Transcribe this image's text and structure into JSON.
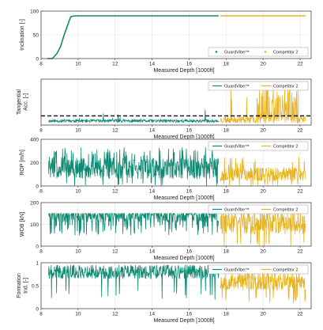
{
  "colors": {
    "guardvibe": "#0e8a72",
    "competitor": "#e8b321",
    "threshold": "#000000",
    "grid": "#e3e3e3",
    "frame": "#333333"
  },
  "chart_data": [
    {
      "type": "line",
      "ylabel": "Inclination [-]",
      "xlabel": "Measured Depth [1000ft]",
      "xlim": [
        8,
        22.6
      ],
      "ylim": [
        0,
        100
      ],
      "xticks": [
        8,
        10,
        12,
        14,
        16,
        18,
        20,
        22
      ],
      "yticks": [
        0,
        50,
        100
      ],
      "legend_position": "bottom-right",
      "series": [
        {
          "name": "GuardVibe™",
          "marker": "dot",
          "x": [
            8.35,
            8.6,
            8.85,
            9.05,
            9.25,
            9.45,
            9.6,
            9.8,
            10.5,
            11.5,
            12.5,
            13.5,
            14.5,
            15.5,
            16.5,
            17.6
          ],
          "values": [
            0,
            0,
            10,
            25,
            50,
            72,
            88,
            90,
            90,
            90,
            90,
            90,
            90,
            90,
            90,
            90
          ]
        },
        {
          "name": "Competitor 2",
          "marker": "dot",
          "x": [
            17.7,
            18.5,
            19.5,
            20.5,
            21.5,
            22.3
          ],
          "values": [
            90,
            90,
            90,
            90,
            90,
            90
          ]
        }
      ]
    },
    {
      "type": "line",
      "ylabel": "Tangential Acc. [-]",
      "xlabel": "Measured Depth [1000ft]",
      "xlim": [
        8,
        22.6
      ],
      "ylim": [
        0,
        10
      ],
      "xticks": [
        8,
        10,
        12,
        14,
        16,
        18,
        20,
        22
      ],
      "yticks": [],
      "legend_position": "top-right",
      "threshold": 2,
      "series": [
        {
          "name": "GuardVibe™",
          "noise": "spiky",
          "x_range": [
            8.4,
            17.6
          ],
          "base": 0.9,
          "amp": 0.7,
          "spike_prob": 0.02,
          "spike_max": 4.5,
          "seed": 11
        },
        {
          "name": "Competitor 2",
          "noise": "spiky",
          "x_range": [
            17.7,
            22.3
          ],
          "base": 1.2,
          "amp": 1.5,
          "spike_prob": 0.2,
          "spike_max": 8.8,
          "seed": 23,
          "burst_range": [
            19.6,
            21.9
          ]
        }
      ]
    },
    {
      "type": "line",
      "ylabel": "ROP [m/h]",
      "xlabel": "Measured Depth [1000ft]",
      "xlim": [
        8,
        22.6
      ],
      "ylim": [
        0,
        400
      ],
      "xticks": [
        8,
        10,
        12,
        14,
        16,
        18,
        20,
        22
      ],
      "yticks": [
        0,
        200,
        400
      ],
      "legend_position": "top-right",
      "series": [
        {
          "name": "GuardVibe™",
          "noise": "band",
          "x_range": [
            8.4,
            17.6
          ],
          "base": 150,
          "amp": 90,
          "spike_prob": 0.12,
          "spike_max": 330,
          "seed": 5
        },
        {
          "name": "Competitor 2",
          "noise": "band",
          "x_range": [
            17.7,
            22.3
          ],
          "base": 100,
          "amp": 60,
          "spike_prob": 0.08,
          "spike_max": 250,
          "seed": 9
        }
      ]
    },
    {
      "type": "line",
      "ylabel": "WOB [kN]",
      "xlabel": "Measured Depth [1000ft]",
      "xlim": [
        8,
        22.6
      ],
      "ylim": [
        0,
        200
      ],
      "xticks": [
        8,
        10,
        12,
        14,
        16,
        18,
        20,
        22
      ],
      "yticks": [
        0,
        100,
        200
      ],
      "legend_position": "top-right",
      "series": [
        {
          "name": "GuardVibe™",
          "noise": "plateau",
          "x_range": [
            8.4,
            17.6
          ],
          "base": 150,
          "amp": 40,
          "spike_prob": 0.15,
          "spike_max": 100,
          "seed": 17
        },
        {
          "name": "Competitor 2",
          "noise": "band",
          "x_range": [
            17.7,
            22.3
          ],
          "base": 105,
          "amp": 50,
          "spike_prob": 0.1,
          "spike_max": 180,
          "seed": 29
        }
      ]
    },
    {
      "type": "line",
      "ylabel": "Formation Ind. [-]",
      "xlabel": "Measured Depth [1000ft]",
      "xlim": [
        8,
        22.6
      ],
      "ylim": [
        0,
        1
      ],
      "xticks": [
        8,
        10,
        12,
        14,
        16,
        18,
        20,
        22
      ],
      "yticks": [
        0,
        0.5,
        1
      ],
      "legend_position": "top-right",
      "series": [
        {
          "name": "GuardVibe™",
          "noise": "drops",
          "x_range": [
            8.4,
            17.6
          ],
          "base": 0.8,
          "amp": 0.15,
          "spike_prob": 0.06,
          "spike_max": 0.6,
          "seed": 41
        },
        {
          "name": "Competitor 2",
          "noise": "drops",
          "x_range": [
            17.7,
            22.3
          ],
          "base": 0.6,
          "amp": 0.2,
          "spike_prob": 0.08,
          "spike_max": 0.5,
          "seed": 53
        }
      ]
    }
  ]
}
